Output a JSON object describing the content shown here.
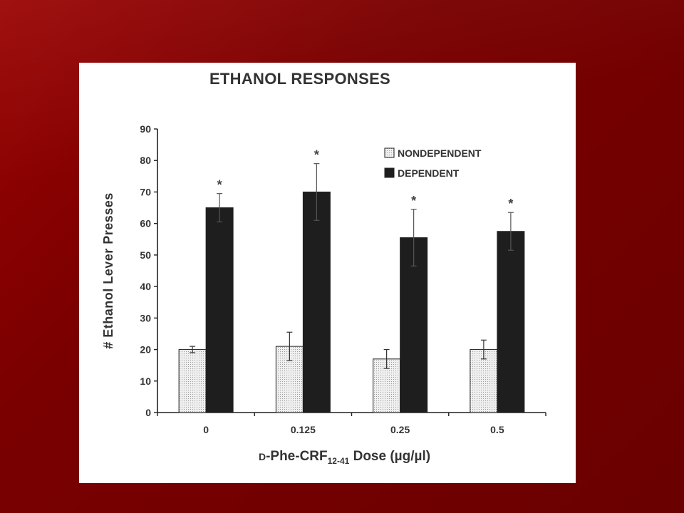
{
  "chart_data": {
    "type": "bar",
    "title": "ETHANOL RESPONSES",
    "xlabel_prefix": "D",
    "xlabel_main": "-Phe-CRF",
    "xlabel_subscript": "12-41",
    "xlabel_suffix": " Dose (µg/µl)",
    "ylabel": "# Ethanol Lever Presses",
    "categories": [
      "0",
      "0.125",
      "0.25",
      "0.5"
    ],
    "ylim": [
      0,
      90
    ],
    "yticks": [
      "0",
      "10",
      "20",
      "30",
      "40",
      "50",
      "60",
      "70",
      "80",
      "90"
    ],
    "grid": false,
    "legend_position": "top-right",
    "series": [
      {
        "name": "NONDEPENDENT",
        "values": [
          20,
          21,
          17,
          20
        ],
        "errors": [
          1,
          4.5,
          3,
          3
        ],
        "color": "#e4e4e4"
      },
      {
        "name": "DEPENDENT",
        "values": [
          65,
          70,
          55.5,
          57.5
        ],
        "errors": [
          4.5,
          9,
          9,
          6
        ],
        "color": "#1e1e1e"
      }
    ],
    "annotations": [
      "*",
      "*",
      "*",
      "*"
    ]
  }
}
